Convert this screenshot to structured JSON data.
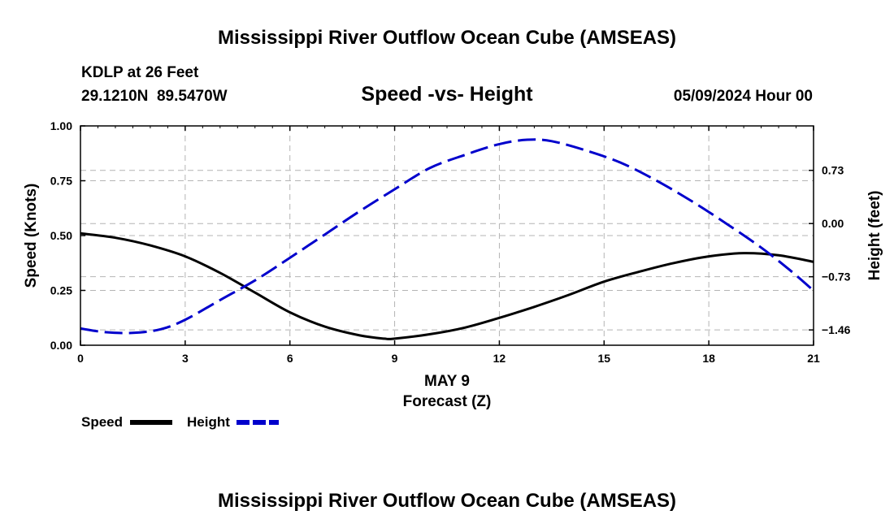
{
  "header": {
    "title": "Mississippi River Outflow Ocean Cube (AMSEAS)",
    "station": "KDLP at 26 Feet",
    "coords": "29.1210N  89.5470W",
    "date": "05/09/2024 Hour 00",
    "footer_title": "Mississippi River Outflow Ocean Cube (AMSEAS)"
  },
  "chart_data": {
    "type": "line",
    "title": "Speed -vs- Height",
    "xlabel": "Forecast (Z)",
    "xlabel_date": "MAY 9",
    "ylabel_left": "Speed (Knots)",
    "ylabel_right": "Height (feet)",
    "xlim": [
      0,
      21
    ],
    "ylim_left": [
      0,
      1
    ],
    "ylim_right": [
      -1.67,
      1.34
    ],
    "x_ticks": [
      "0",
      "3",
      "6",
      "9",
      "12",
      "15",
      "18",
      "21"
    ],
    "x_tick_values": [
      0,
      3,
      6,
      9,
      12,
      15,
      18,
      21
    ],
    "y_left_ticks": [
      "0.00",
      "0.25",
      "0.50",
      "0.75",
      "1.00"
    ],
    "y_left_tick_values": [
      0,
      0.25,
      0.5,
      0.75,
      1.0
    ],
    "y_right_ticks": [
      "0.73",
      "0.00",
      "−0.73",
      "−1.46"
    ],
    "y_right_tick_values": [
      0.73,
      0.0,
      -0.73,
      -1.46
    ],
    "grid": true,
    "series": [
      {
        "name": "Speed",
        "axis": "left",
        "color": "#000000",
        "dash": "solid",
        "x": [
          0,
          1,
          2,
          3,
          4,
          5,
          6,
          7,
          8,
          8.7,
          9,
          10,
          11,
          12,
          13,
          14,
          15,
          16,
          17,
          18,
          19,
          20,
          21
        ],
        "values": [
          0.51,
          0.49,
          0.455,
          0.405,
          0.33,
          0.24,
          0.15,
          0.085,
          0.045,
          0.03,
          0.03,
          0.05,
          0.08,
          0.125,
          0.175,
          0.23,
          0.29,
          0.335,
          0.375,
          0.405,
          0.42,
          0.41,
          0.38
        ]
      },
      {
        "name": "Height",
        "axis": "right",
        "color": "#0000cc",
        "dash": "dashed",
        "x": [
          0,
          0.7,
          1.5,
          2.3,
          3,
          4,
          5,
          6,
          7,
          8,
          9,
          10,
          11,
          12,
          12.8,
          13.5,
          14.5,
          15.5,
          16.5,
          17.5,
          18.5,
          19.5,
          20.3,
          21
        ],
        "values": [
          -1.44,
          -1.49,
          -1.5,
          -1.45,
          -1.32,
          -1.05,
          -0.78,
          -0.47,
          -0.15,
          0.17,
          0.47,
          0.76,
          0.94,
          1.09,
          1.15,
          1.13,
          1.0,
          0.83,
          0.59,
          0.31,
          0.0,
          -0.33,
          -0.63,
          -0.92
        ]
      }
    ],
    "legend": [
      {
        "label": "Speed",
        "color": "#000000",
        "dash": "solid"
      },
      {
        "label": "Height",
        "color": "#0000cc",
        "dash": "dashed"
      }
    ],
    "legend_position": "bottom-left"
  }
}
